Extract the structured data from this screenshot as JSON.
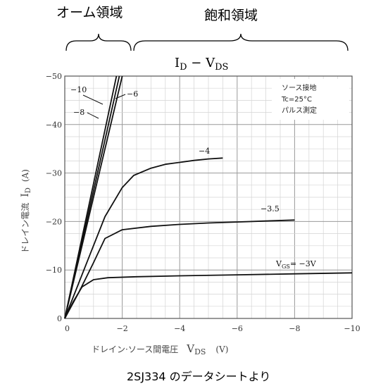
{
  "headers": {
    "ohmic_region": "オーム領域",
    "saturation_region": "飽和領域"
  },
  "caption": "2SJ334 のデータシートより",
  "chart_data": {
    "type": "line",
    "title": "ID − VDS",
    "title_parts": {
      "i": "I",
      "i_sub": "D",
      "dash": " − ",
      "v": "V",
      "v_sub": "DS"
    },
    "xlabel": "ドレイン·ソース間電圧",
    "xlabel_var": "V",
    "xlabel_var_sub": "DS",
    "xlabel_unit": "(V)",
    "ylabel": "ドレイン電流",
    "ylabel_var": "I",
    "ylabel_var_sub": "D",
    "ylabel_unit": "(A)",
    "xlim": [
      0,
      -10
    ],
    "ylim": [
      0,
      -50
    ],
    "x_ticks": [
      "0",
      "−2",
      "−4",
      "−6",
      "−8",
      "−10"
    ],
    "y_ticks": [
      "0",
      "−10",
      "−20",
      "−30",
      "−40",
      "−50"
    ],
    "grid": true,
    "conditions": [
      "ソース接地",
      "Tc=25°C",
      "パルス測定"
    ],
    "series": [
      {
        "name": "VGS=−3V",
        "label_prefix": "V",
        "label_sub": "GS",
        "label_rest": "= −3V",
        "x": [
          0,
          -0.3,
          -0.6,
          -1.0,
          -1.5,
          -2.5,
          -4,
          -6,
          -8,
          -10
        ],
        "y": [
          0,
          -3.5,
          -6.5,
          -8.0,
          -8.4,
          -8.6,
          -8.8,
          -9.0,
          -9.2,
          -9.4
        ]
      },
      {
        "name": "−3.5",
        "label": "−3.5",
        "x": [
          0,
          -0.5,
          -1.0,
          -1.4,
          -2.0,
          -3.0,
          -4,
          -5,
          -6,
          -7,
          -8
        ],
        "y": [
          0,
          -5.5,
          -11.5,
          -16.5,
          -18.3,
          -19.0,
          -19.4,
          -19.7,
          -19.9,
          -20.1,
          -20.3
        ]
      },
      {
        "name": "−4",
        "label": "−4",
        "x": [
          0,
          -0.8,
          -1.4,
          -2.0,
          -2.4,
          -3.0,
          -3.5,
          -4.0,
          -4.5,
          -5.0,
          -5.5
        ],
        "y": [
          0,
          -12,
          -21,
          -27,
          -29.5,
          -31.0,
          -31.8,
          -32.2,
          -32.6,
          -32.9,
          -33.1
        ]
      },
      {
        "name": "−6",
        "label": "−6",
        "x": [
          0,
          -2.0
        ],
        "y": [
          0,
          -50
        ]
      },
      {
        "name": "−8",
        "label": "−8",
        "x": [
          0,
          -1.9
        ],
        "y": [
          0,
          -50
        ]
      },
      {
        "name": "−10",
        "label": "−10",
        "x": [
          0,
          -1.8
        ],
        "y": [
          0,
          -50
        ]
      }
    ]
  }
}
